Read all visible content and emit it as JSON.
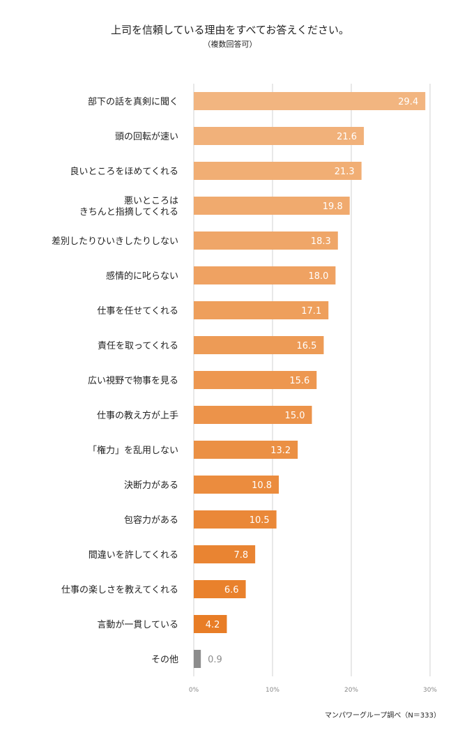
{
  "chart_data": {
    "type": "bar",
    "orientation": "horizontal",
    "title": "上司を信頼している理由をすべてお答えください。",
    "subtitle": "（複数回答可）",
    "categories": [
      "部下の話を真剣に聞く",
      "頭の回転が速い",
      "良いところをほめてくれる",
      "悪いところは\nきちんと指摘してくれる",
      "差別したりひいきしたりしない",
      "感情的に叱らない",
      "仕事を任せてくれる",
      "責任を取ってくれる",
      "広い視野で物事を見る",
      "仕事の教え方が上手",
      "「権力」を乱用しない",
      "決断力がある",
      "包容力がある",
      "間違いを許してくれる",
      "仕事の楽しさを教えてくれる",
      "言動が一貫している",
      "その他"
    ],
    "values": [
      29.4,
      21.6,
      21.3,
      19.8,
      18.3,
      18.0,
      17.1,
      16.5,
      15.6,
      15.0,
      13.2,
      10.8,
      10.5,
      7.8,
      6.6,
      4.2,
      0.9
    ],
    "value_labels": [
      "29.4",
      "21.6",
      "21.3",
      "19.8",
      "18.3",
      "18.0",
      "17.1",
      "16.5",
      "15.6",
      "15.0",
      "13.2",
      "10.8",
      "10.5",
      "7.8",
      "6.6",
      "4.2",
      "0.9"
    ],
    "xlim": [
      0,
      30
    ],
    "xticks": [
      "0%",
      "10%",
      "20%",
      "30%"
    ],
    "grid": true,
    "colors": {
      "bar_light": "#F2B580",
      "bar_dark": "#E87D26",
      "other": "#8C8C8C",
      "other_label": "#8C8C8C",
      "grid": "#D0D0D0",
      "tick": "#888888"
    },
    "source": "マンパワーグループ調べ（N＝333）"
  }
}
